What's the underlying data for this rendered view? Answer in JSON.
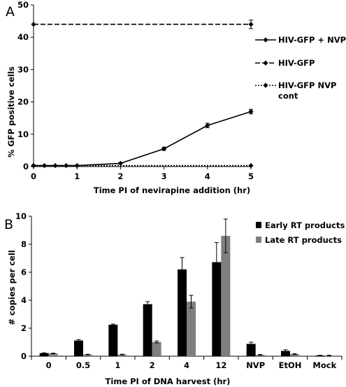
{
  "chart_data": [
    {
      "type": "line",
      "panel_label": "A",
      "xlabel": "Time PI of nevirapine addition (hr)",
      "ylabel": "% GFP positive cells",
      "xlim": [
        0,
        5
      ],
      "ylim": [
        0,
        50
      ],
      "xticks": [
        "0",
        "1",
        "2",
        "3",
        "4",
        "5"
      ],
      "yticks": [
        "0",
        "10",
        "20",
        "30",
        "40",
        "50"
      ],
      "grid": false,
      "legend_position": "right",
      "series": [
        {
          "name": "HIV-GFP + NVP",
          "line_style": "solid",
          "marker": "diamond",
          "x": [
            0,
            0.25,
            0.5,
            0.75,
            1,
            2,
            3,
            4,
            5
          ],
          "y": [
            0.3,
            0.3,
            0.3,
            0.3,
            0.3,
            1.0,
            5.5,
            12.7,
            17.0
          ],
          "error": [
            0,
            0,
            0,
            0,
            0,
            0.2,
            0.5,
            0.7,
            0.7
          ]
        },
        {
          "name": "HIV-GFP",
          "line_style": "dashed",
          "marker": "diamond",
          "x": [
            0,
            5
          ],
          "y": [
            44.0,
            44.0
          ],
          "error": [
            0,
            1.3
          ]
        },
        {
          "name": "HIV-GFP NVP cont",
          "line_style": "dotted",
          "marker": "diamond",
          "x": [
            0,
            5
          ],
          "y": [
            0.3,
            0.3
          ],
          "error": [
            0,
            0
          ]
        }
      ]
    },
    {
      "type": "bar",
      "panel_label": "B",
      "xlabel": "Time PI of DNA harvest (hr)",
      "ylabel": "# copies per cell",
      "ylim": [
        0,
        10
      ],
      "yticks": [
        "0",
        "2",
        "4",
        "6",
        "8",
        "10"
      ],
      "categories": [
        "0",
        "0.5",
        "1",
        "2",
        "4",
        "12",
        "NVP",
        "EtOH",
        "Mock"
      ],
      "grid": false,
      "legend_position": "top-right",
      "series": [
        {
          "name": "Early RT products",
          "color": "#000000",
          "values": [
            0.22,
            1.12,
            2.25,
            3.72,
            6.2,
            6.72,
            0.88,
            0.38,
            0.05
          ],
          "error": [
            0.02,
            0.07,
            0.05,
            0.18,
            0.85,
            1.4,
            0.12,
            0.08,
            0.02
          ]
        },
        {
          "name": "Late RT products",
          "color": "#7f7f7f",
          "values": [
            0.2,
            0.12,
            0.12,
            1.02,
            3.9,
            8.6,
            0.1,
            0.15,
            0.05
          ],
          "error": [
            0.02,
            0.02,
            0.02,
            0.07,
            0.45,
            1.2,
            0.02,
            0.03,
            0.02
          ]
        }
      ]
    }
  ]
}
